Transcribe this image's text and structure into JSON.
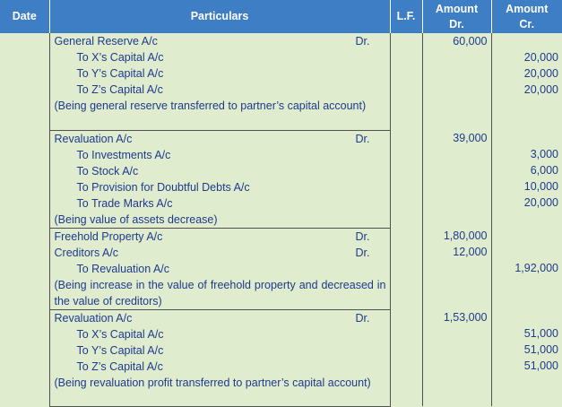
{
  "header": {
    "date": "Date",
    "particulars": "Particulars",
    "lf": "L.F.",
    "amount_dr": [
      "Amount",
      "Dr."
    ],
    "amount_cr": [
      "Amount",
      "Cr."
    ]
  },
  "entries": [
    {
      "lines": [
        {
          "text": "General Reserve A/c",
          "to": false,
          "dr": "Dr.",
          "debit": "60,000",
          "credit": ""
        },
        {
          "text": "To X’s Capital A/c",
          "to": true,
          "dr": "",
          "debit": "",
          "credit": "20,000"
        },
        {
          "text": "To Y’s Capital A/c",
          "to": true,
          "dr": "",
          "debit": "",
          "credit": "20,000"
        },
        {
          "text": "To Z’s Capital A/c",
          "to": true,
          "dr": "",
          "debit": "",
          "credit": "20,000"
        }
      ],
      "narration": "(Being general reserve transferred to partner’s capital account)",
      "narration_lines": 2
    },
    {
      "lines": [
        {
          "text": "Revaluation A/c",
          "to": false,
          "dr": "Dr.",
          "debit": "39,000",
          "credit": ""
        },
        {
          "text": "To Investments A/c",
          "to": true,
          "dr": "",
          "debit": "",
          "credit": "3,000"
        },
        {
          "text": "To Stock A/c",
          "to": true,
          "dr": "",
          "debit": "",
          "credit": "6,000"
        },
        {
          "text": "To Provision for Doubtful Debts A/c",
          "to": true,
          "dr": "",
          "debit": "",
          "credit": "10,000"
        },
        {
          "text": "To Trade Marks A/c",
          "to": true,
          "dr": "",
          "debit": "",
          "credit": "20,000"
        }
      ],
      "narration": "(Being value of assets decrease)",
      "narration_lines": 1
    },
    {
      "lines": [
        {
          "text": "Freehold Property A/c",
          "to": false,
          "dr": "Dr.",
          "debit": "1,80,000",
          "credit": ""
        },
        {
          "text": "Creditors A/c",
          "to": false,
          "dr": "Dr.",
          "debit": "12,000",
          "credit": ""
        },
        {
          "text": "To Revaluation A/c",
          "to": true,
          "dr": "",
          "debit": "",
          "credit": "1,92,000"
        }
      ],
      "narration": "(Being increase in the value of freehold property and decreased in the value of creditors)",
      "narration_lines": 2
    },
    {
      "lines": [
        {
          "text": "Revaluation A/c",
          "to": false,
          "dr": "Dr.",
          "debit": "1,53,000",
          "credit": ""
        },
        {
          "text": "To X’s Capital A/c",
          "to": true,
          "dr": "",
          "debit": "",
          "credit": "51,000"
        },
        {
          "text": "To Y’s Capital A/c",
          "to": true,
          "dr": "",
          "debit": "",
          "credit": "51,000"
        },
        {
          "text": "To Z’s Capital A/c",
          "to": true,
          "dr": "",
          "debit": "",
          "credit": "51,000"
        }
      ],
      "narration": "(Being revaluation profit transferred to partner’s capital account)",
      "narration_lines": 2
    }
  ]
}
